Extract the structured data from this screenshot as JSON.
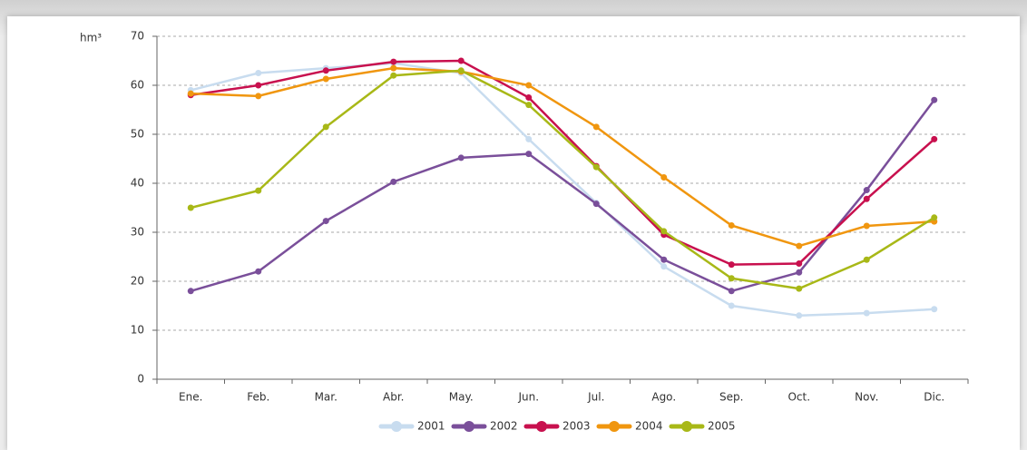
{
  "chart_data": {
    "type": "line",
    "ylabel": "hm³",
    "categories": [
      "Ene.",
      "Feb.",
      "Mar.",
      "Abr.",
      "May.",
      "Jun.",
      "Jul.",
      "Ago.",
      "Sep.",
      "Oct.",
      "Nov.",
      "Dic."
    ],
    "series": [
      {
        "name": "2001",
        "color": "#c8dcef",
        "values": [
          59,
          62.5,
          63.5,
          64.5,
          62.5,
          49,
          36,
          23,
          15,
          13,
          13.5,
          14.3
        ]
      },
      {
        "name": "2002",
        "color": "#7a4f9a",
        "values": [
          18,
          22,
          32.3,
          40.3,
          45.2,
          46,
          35.8,
          24.4,
          18,
          21.8,
          38.6,
          57
        ]
      },
      {
        "name": "2003",
        "color": "#c8104e",
        "values": [
          58,
          60,
          63,
          64.8,
          65,
          57.5,
          43.5,
          29.5,
          23.4,
          23.6,
          36.8,
          49
        ]
      },
      {
        "name": "2004",
        "color": "#f0960f",
        "values": [
          58.3,
          57.8,
          61.3,
          63.5,
          62.8,
          60,
          51.5,
          41.2,
          31.4,
          27.2,
          31.3,
          32.2
        ]
      },
      {
        "name": "2005",
        "color": "#a8b817",
        "values": [
          35,
          38.5,
          51.5,
          62,
          63,
          56,
          43.3,
          30.2,
          20.6,
          18.5,
          24.4,
          33
        ]
      }
    ],
    "ylim": [
      0,
      70
    ],
    "yticks": [
      0,
      10,
      20,
      30,
      40,
      50,
      60,
      70
    ],
    "grid": true,
    "legend": "bottom"
  }
}
